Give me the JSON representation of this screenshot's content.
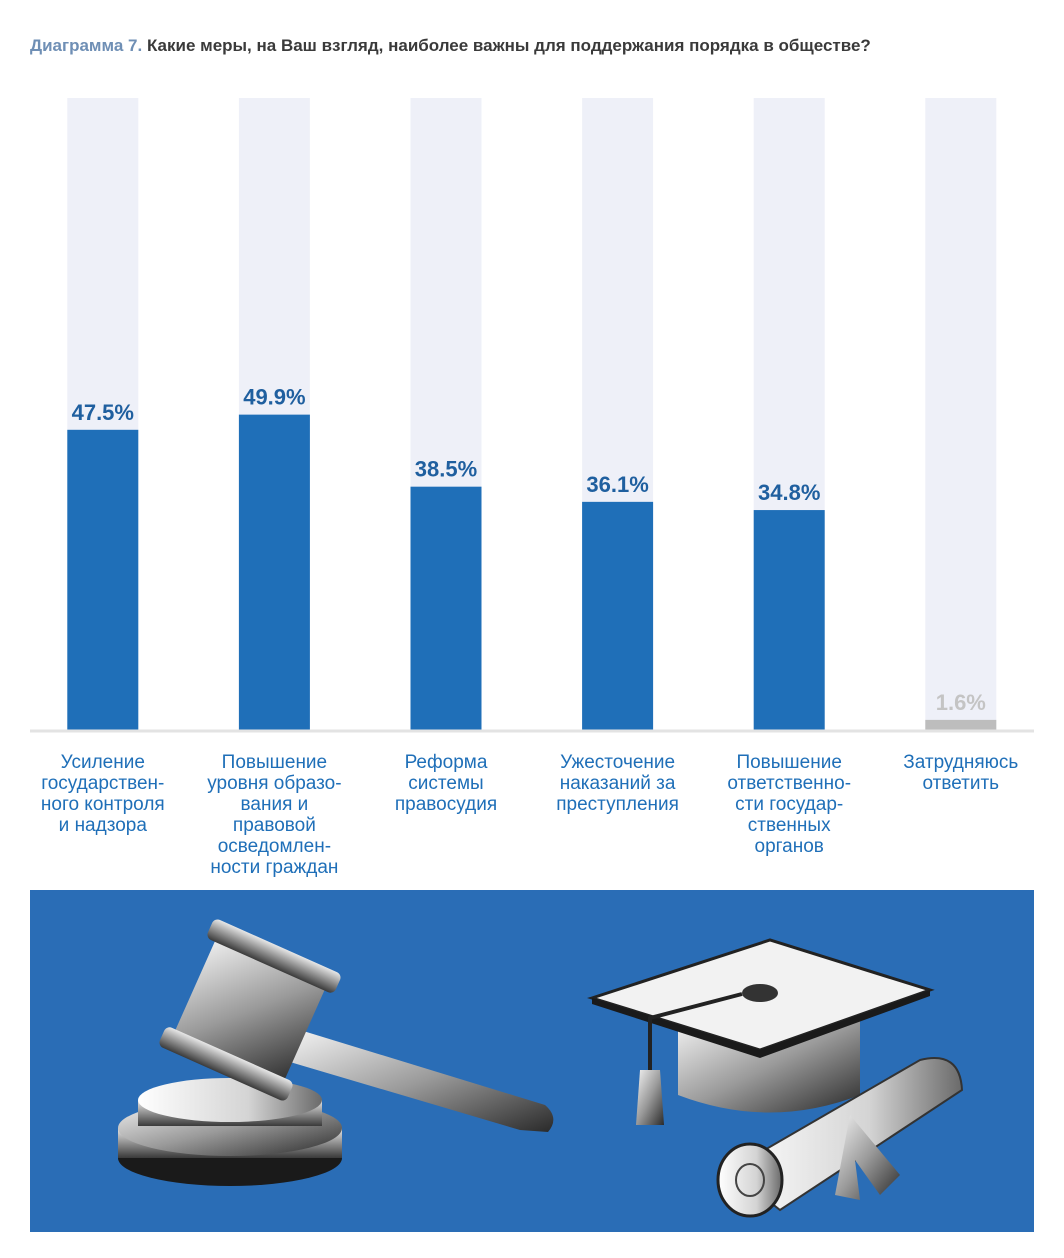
{
  "chart_data": {
    "type": "bar",
    "title_label": "Диаграмма 7.",
    "title": "Какие меры, на Ваш взгляд, наиболее важны для поддержания порядка в обществе?",
    "categories": [
      "Усиление\nгосударствен-\nного контроля\nи надзора",
      "Повышение\nуровня образо-\nвания и\nправовой\nосведомлен-\nности граждан",
      "Реформа\nсистемы\nправосудия",
      "Ужесточение\nнаказаний за\nпреступления",
      "Повышение\nответственно-\nсти государ-\nственных\nорганов",
      "Затрудняюсь\nответить"
    ],
    "values": [
      47.5,
      49.9,
      38.5,
      36.1,
      34.8,
      1.6
    ],
    "value_labels": [
      "47.5%",
      "49.9%",
      "38.5%",
      "36.1%",
      "34.8%",
      "1.6%"
    ],
    "colors": [
      "#1f6fb8",
      "#1f6fb8",
      "#1f6fb8",
      "#1f6fb8",
      "#1f6fb8",
      "#bdbdbd"
    ],
    "label_colors": [
      "#1f5f9f",
      "#1f5f9f",
      "#1f5f9f",
      "#1f5f9f",
      "#1f5f9f",
      "#c4c4c4"
    ],
    "ylim": [
      0,
      100
    ]
  }
}
